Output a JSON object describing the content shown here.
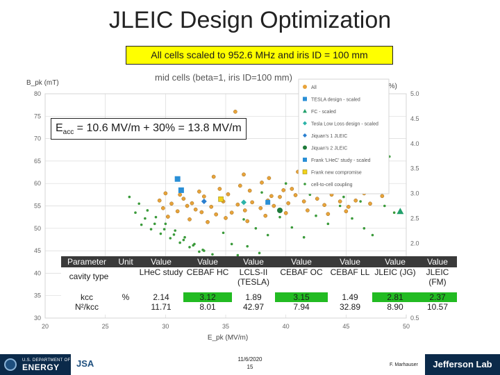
{
  "slide": {
    "title": "JLEIC Design Optimization",
    "subtitle": "All cells scaled to 952.6 MHz and iris ID = 100 mm",
    "eacc_main": "E",
    "eacc_sub": "acc",
    "eacc_rest": " = 10.6 MV/m + 30% = 13.8 MV/m",
    "date_line1": "11/6/2020",
    "date_line2": "15",
    "author": "F. Marhauser",
    "doe_line1": "U.S. DEPARTMENT OF",
    "doe_line2": "ENERGY",
    "jsa_text": "JSA",
    "jlab_text": "Jefferson Lab"
  },
  "colors": {
    "all": "#e8a33a",
    "tesla": "#2a8fd6",
    "fc": "#22a06b",
    "lowloss": "#2bb3a8",
    "jiquan1": "#2a7fd0",
    "jiquan2": "#1e7a3a",
    "frank_lhec": "#2a8fd6",
    "frank_new": "#f2d21b",
    "cell_coupling": "#3a9a3a",
    "table_green": "#22bb22",
    "header_dark": "#3a3a3a"
  },
  "chart_data": {
    "type": "scatter",
    "title": "mid cells (beta=1, iris ID=100 mm)",
    "xlabel": "E_pk (MV/m)",
    "ylabel": "B_pk (mT)",
    "y2label": "k_cc (%)",
    "xlim": [
      20,
      50
    ],
    "ylim": [
      30,
      80
    ],
    "y2lim": [
      0.5,
      5.0
    ],
    "xticks": [
      "20",
      "25",
      "30",
      "35",
      "40",
      "45",
      "50"
    ],
    "yticks": [
      "30",
      "35",
      "40",
      "45",
      "50",
      "55",
      "60",
      "65",
      "70",
      "75",
      "80"
    ],
    "y2ticks": [
      "0.5",
      "1.0",
      "1.5",
      "2.0",
      "2.5",
      "3.0",
      "3.5",
      "4.0",
      "4.5",
      "5.0"
    ],
    "grid": true,
    "legend_position": "top-right",
    "legend": [
      {
        "label": "All",
        "marker": "circle",
        "color_key": "all"
      },
      {
        "label": "TESLA design - scaled",
        "marker": "square",
        "color_key": "tesla"
      },
      {
        "label": "FC - scaled",
        "marker": "triangle",
        "color_key": "fc"
      },
      {
        "label": "Tesla Low Loss design - scaled",
        "marker": "diamond",
        "color_key": "lowloss"
      },
      {
        "label": "Jiquan's 1 JLEIC",
        "marker": "diamond",
        "color_key": "jiquan1"
      },
      {
        "label": "Jiquan's 2 JLEIC",
        "marker": "circle",
        "color_key": "jiquan2"
      },
      {
        "label": "Frank 'LHeC' study - scaled",
        "marker": "square",
        "color_key": "frank_lhec"
      },
      {
        "label": "Frank new compromise",
        "marker": "square",
        "color_key": "frank_new"
      },
      {
        "label": "cell-to-cell coupling",
        "marker": "dot",
        "color_key": "cell_coupling"
      }
    ],
    "series": [
      {
        "name": "All",
        "points": [
          [
            29.5,
            56.2
          ],
          [
            29.8,
            54.5
          ],
          [
            30.5,
            55.5
          ],
          [
            31.0,
            53.8
          ],
          [
            31.8,
            55.0
          ],
          [
            32.5,
            54.2
          ],
          [
            33.0,
            53.6
          ],
          [
            33.8,
            54.8
          ],
          [
            34.2,
            53.1
          ],
          [
            34.8,
            56.0
          ],
          [
            35.5,
            53.5
          ],
          [
            36.0,
            55.3
          ],
          [
            36.6,
            54.0
          ],
          [
            37.2,
            55.8
          ],
          [
            37.9,
            54.5
          ],
          [
            38.5,
            56.2
          ],
          [
            39.0,
            55.0
          ],
          [
            39.5,
            57.0
          ],
          [
            40.2,
            55.6
          ],
          [
            40.8,
            57.4
          ],
          [
            41.5,
            56.0
          ],
          [
            42.0,
            58.0
          ],
          [
            42.6,
            56.6
          ],
          [
            43.2,
            55.2
          ],
          [
            43.8,
            57.5
          ],
          [
            44.5,
            56.0
          ],
          [
            45.2,
            54.8
          ],
          [
            45.8,
            56.2
          ],
          [
            46.5,
            57.8
          ],
          [
            47.0,
            55.5
          ],
          [
            31.2,
            57.5
          ],
          [
            32.8,
            58.2
          ],
          [
            34.5,
            58.8
          ],
          [
            36.2,
            59.5
          ],
          [
            38.0,
            60.2
          ],
          [
            39.8,
            58.5
          ],
          [
            41.2,
            59.6
          ],
          [
            43.0,
            60.4
          ],
          [
            44.6,
            59.0
          ],
          [
            46.0,
            60.8
          ],
          [
            30.2,
            52.6
          ],
          [
            32.0,
            52.0
          ],
          [
            33.5,
            51.4
          ],
          [
            35.0,
            52.3
          ],
          [
            36.8,
            51.6
          ],
          [
            38.3,
            52.8
          ],
          [
            40.0,
            53.4
          ],
          [
            41.8,
            54.0
          ],
          [
            43.5,
            53.2
          ],
          [
            45.0,
            53.8
          ],
          [
            30.0,
            57.8
          ],
          [
            31.5,
            56.6
          ],
          [
            33.2,
            57.1
          ],
          [
            35.2,
            57.6
          ],
          [
            37.0,
            58.4
          ],
          [
            38.8,
            57.2
          ],
          [
            40.5,
            58.8
          ],
          [
            42.3,
            59.4
          ],
          [
            44.0,
            58.2
          ],
          [
            45.6,
            59.8
          ],
          [
            34.0,
            61.5
          ],
          [
            36.5,
            62.0
          ],
          [
            38.6,
            61.2
          ],
          [
            41.0,
            62.6
          ],
          [
            43.4,
            61.8
          ],
          [
            45.4,
            62.8
          ],
          [
            47.2,
            59.4
          ],
          [
            48.0,
            57.2
          ],
          [
            35.8,
            76.0
          ],
          [
            32.2,
            55.6
          ]
        ]
      },
      {
        "name": "cell-to-cell coupling",
        "points": [
          [
            27.0,
            57.0
          ],
          [
            27.8,
            55.5
          ],
          [
            28.5,
            54.0
          ],
          [
            29.2,
            52.5
          ],
          [
            30.0,
            51.0
          ],
          [
            30.8,
            49.5
          ],
          [
            31.6,
            48.0
          ],
          [
            32.4,
            46.5
          ],
          [
            33.2,
            45.0
          ],
          [
            34.0,
            43.5
          ],
          [
            27.5,
            53.5
          ],
          [
            28.3,
            52.2
          ],
          [
            29.1,
            51.0
          ],
          [
            29.9,
            49.8
          ],
          [
            30.7,
            48.6
          ],
          [
            31.5,
            47.4
          ],
          [
            32.3,
            46.2
          ],
          [
            33.1,
            45.2
          ],
          [
            33.9,
            44.2
          ],
          [
            28.0,
            50.8
          ],
          [
            28.8,
            49.8
          ],
          [
            29.6,
            48.8
          ],
          [
            30.4,
            47.8
          ],
          [
            31.2,
            46.8
          ],
          [
            32.0,
            45.8
          ],
          [
            32.8,
            44.8
          ],
          [
            34.8,
            49.0
          ],
          [
            35.5,
            46.5
          ],
          [
            36.0,
            44.0
          ],
          [
            36.5,
            52.0
          ],
          [
            37.5,
            50.0
          ],
          [
            38.5,
            48.5
          ],
          [
            39.5,
            52.5
          ],
          [
            40.5,
            50.2
          ],
          [
            41.5,
            48.0
          ],
          [
            42.5,
            52.8
          ],
          [
            43.5,
            51.0
          ],
          [
            44.5,
            55.0
          ],
          [
            45.5,
            52.2
          ],
          [
            46.5,
            50.0
          ],
          [
            47.2,
            48.5
          ],
          [
            42.0,
            57.5
          ],
          [
            43.2,
            58.6
          ],
          [
            44.8,
            57.0
          ],
          [
            46.2,
            56.0
          ],
          [
            48.2,
            55.0
          ],
          [
            49.0,
            53.5
          ],
          [
            38.0,
            58.0
          ],
          [
            40.0,
            60.0
          ],
          [
            41.8,
            61.5
          ],
          [
            43.6,
            62.8
          ],
          [
            45.2,
            64.0
          ],
          [
            47.0,
            65.0
          ],
          [
            48.6,
            66.0
          ],
          [
            36.8,
            46.0
          ],
          [
            37.8,
            44.5
          ],
          [
            38.8,
            43.0
          ]
        ]
      },
      {
        "name": "TESLA design - scaled",
        "points": [
          [
            31.0,
            61.0
          ],
          [
            31.3,
            58.5
          ]
        ]
      },
      {
        "name": "FC - scaled",
        "points": [
          [
            49.5,
            53.8
          ]
        ]
      },
      {
        "name": "Tesla Low Loss design - scaled",
        "points": [
          [
            36.5,
            55.8
          ]
        ]
      },
      {
        "name": "Jiquan's 1 JLEIC",
        "points": [
          [
            33.2,
            56.0
          ]
        ]
      },
      {
        "name": "Jiquan's 2 JLEIC",
        "points": [
          [
            39.5,
            54.0
          ]
        ]
      },
      {
        "name": "Frank 'LHeC' study - scaled",
        "points": [
          [
            38.5,
            55.8
          ]
        ]
      },
      {
        "name": "Frank new compromise",
        "points": [
          [
            34.6,
            56.5
          ]
        ]
      }
    ]
  },
  "table": {
    "header": [
      "Parameter",
      "Unit",
      "Value",
      "Value",
      "Value",
      "Value",
      "Value",
      "Value",
      "Value"
    ],
    "rows": [
      {
        "label": "cavity type",
        "unit": "",
        "values": [
          "LHeC study",
          "CEBAF HC",
          "LCLS-II (TESLA)",
          "CEBAF OC",
          "CEBAF LL",
          "JLEIC (JG)",
          "JLEIC (FM)"
        ]
      },
      {
        "label": "kcc",
        "unit": "%",
        "values": [
          "2.14",
          "3.12",
          "1.89",
          "3.15",
          "1.49",
          "2.81",
          "2.37"
        ]
      },
      {
        "label": "N²/kcc",
        "unit": "",
        "values": [
          "11.71",
          "8.01",
          "42.97",
          "7.94",
          "32.89",
          "8.90",
          "10.57"
        ]
      }
    ],
    "highlight_kcc": [
      false,
      true,
      false,
      true,
      false,
      true,
      true
    ]
  }
}
